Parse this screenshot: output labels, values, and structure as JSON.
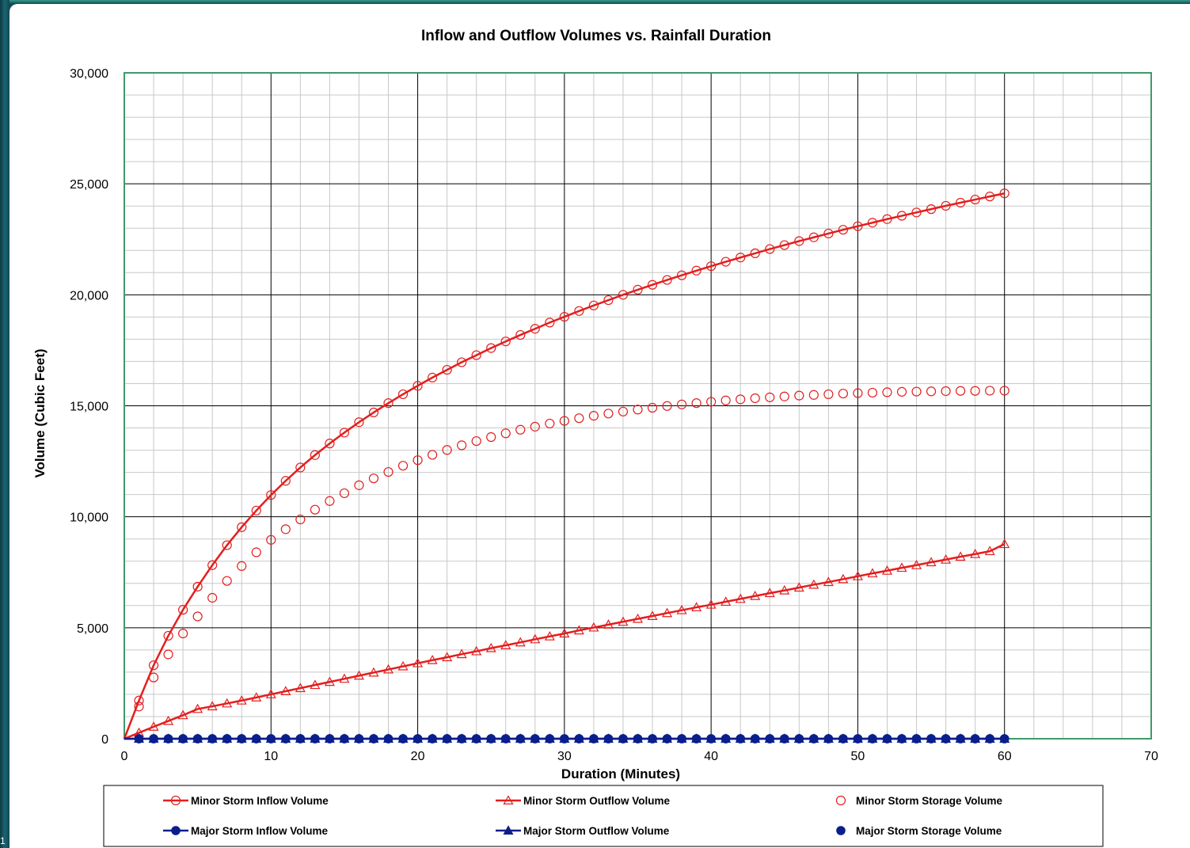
{
  "corner_mark": "1",
  "chart_data": {
    "type": "line",
    "title": "Inflow and Outflow Volumes vs. Rainfall Duration",
    "xlabel": "Duration (Minutes)",
    "ylabel": "Volume (Cubic Feet)",
    "xlim": [
      0,
      70
    ],
    "ylim": [
      0,
      30000
    ],
    "x_ticks": [
      0,
      10,
      20,
      30,
      40,
      50,
      60,
      70
    ],
    "x_tick_labels": [
      "0",
      "10",
      "20",
      "30",
      "40",
      "50",
      "60",
      "70"
    ],
    "y_ticks": [
      0,
      5000,
      10000,
      15000,
      20000,
      25000,
      30000
    ],
    "y_tick_labels": [
      "0",
      "5,000",
      "10,000",
      "15,000",
      "20,000",
      "25,000",
      "30,000"
    ],
    "grid": true,
    "legend_position": "bottom",
    "colors": {
      "minor": "#e41e1e",
      "major": "#0a1f8c",
      "plot_border": "#3f9a6a",
      "major_grid": "#000000",
      "minor_grid": "#c8c8c8"
    },
    "x": [
      0,
      1,
      2,
      3,
      4,
      5,
      6,
      7,
      8,
      9,
      10,
      11,
      12,
      13,
      14,
      15,
      16,
      17,
      18,
      19,
      20,
      21,
      22,
      23,
      24,
      25,
      26,
      27,
      28,
      29,
      30,
      31,
      32,
      33,
      34,
      35,
      36,
      37,
      38,
      39,
      40,
      41,
      42,
      43,
      44,
      45,
      46,
      47,
      48,
      49,
      50,
      51,
      52,
      53,
      54,
      55,
      56,
      57,
      58,
      59,
      60
    ],
    "series": [
      {
        "name": "Minor Storm Inflow Volume",
        "style": "line-open-circle",
        "values": [
          0,
          1720,
          3310,
          4640,
          5810,
          6850,
          7820,
          8720,
          9530,
          10280,
          10980,
          11620,
          12220,
          12780,
          13300,
          13790,
          14260,
          14700,
          15120,
          15520,
          15900,
          16270,
          16620,
          16960,
          17280,
          17600,
          17900,
          18190,
          18470,
          18750,
          19010,
          19270,
          19520,
          19760,
          20000,
          20230,
          20450,
          20670,
          20880,
          21090,
          21290,
          21490,
          21680,
          21870,
          22060,
          22240,
          22420,
          22590,
          22760,
          22930,
          23090,
          23250,
          23410,
          23560,
          23710,
          23860,
          24010,
          24150,
          24290,
          24430,
          24570
        ]
      },
      {
        "name": "Minor Storm Outflow Volume",
        "style": "line-open-triangle",
        "values": [
          0,
          270,
          540,
          800,
          1060,
          1340,
          1460,
          1590,
          1720,
          1860,
          2000,
          2140,
          2280,
          2420,
          2560,
          2700,
          2840,
          2980,
          3120,
          3260,
          3400,
          3540,
          3670,
          3810,
          3940,
          4080,
          4210,
          4340,
          4480,
          4610,
          4740,
          4880,
          5010,
          5140,
          5270,
          5400,
          5530,
          5660,
          5790,
          5920,
          6040,
          6170,
          6300,
          6430,
          6560,
          6680,
          6810,
          6940,
          7060,
          7190,
          7320,
          7450,
          7570,
          7700,
          7820,
          7950,
          8070,
          8200,
          8320,
          8450,
          8770
        ]
      },
      {
        "name": "Minor Storm Storage Volume",
        "style": "open-circle",
        "values": [
          0,
          1450,
          2760,
          3800,
          4740,
          5510,
          6350,
          7110,
          7780,
          8400,
          8960,
          9440,
          9880,
          10320,
          10710,
          11060,
          11420,
          11730,
          12020,
          12300,
          12550,
          12790,
          13010,
          13220,
          13410,
          13590,
          13760,
          13920,
          14060,
          14200,
          14320,
          14440,
          14550,
          14650,
          14740,
          14830,
          14910,
          14990,
          15060,
          15120,
          15180,
          15240,
          15290,
          15340,
          15380,
          15420,
          15460,
          15490,
          15520,
          15550,
          15570,
          15590,
          15610,
          15630,
          15640,
          15650,
          15660,
          15670,
          15670,
          15680,
          15680
        ]
      },
      {
        "name": "Major Storm Inflow Volume",
        "style": "line-filled-circle",
        "values": [
          0,
          0,
          0,
          0,
          0,
          0,
          0,
          0,
          0,
          0,
          0,
          0,
          0,
          0,
          0,
          0,
          0,
          0,
          0,
          0,
          0,
          0,
          0,
          0,
          0,
          0,
          0,
          0,
          0,
          0,
          0,
          0,
          0,
          0,
          0,
          0,
          0,
          0,
          0,
          0,
          0,
          0,
          0,
          0,
          0,
          0,
          0,
          0,
          0,
          0,
          0,
          0,
          0,
          0,
          0,
          0,
          0,
          0,
          0,
          0,
          0
        ]
      },
      {
        "name": "Major Storm Outflow Volume",
        "style": "line-filled-triangle",
        "values": [
          0,
          0,
          0,
          0,
          0,
          0,
          0,
          0,
          0,
          0,
          0,
          0,
          0,
          0,
          0,
          0,
          0,
          0,
          0,
          0,
          0,
          0,
          0,
          0,
          0,
          0,
          0,
          0,
          0,
          0,
          0,
          0,
          0,
          0,
          0,
          0,
          0,
          0,
          0,
          0,
          0,
          0,
          0,
          0,
          0,
          0,
          0,
          0,
          0,
          0,
          0,
          0,
          0,
          0,
          0,
          0,
          0,
          0,
          0,
          0,
          0
        ]
      },
      {
        "name": "Major Storm Storage Volume",
        "style": "filled-circle",
        "values": [
          0,
          0,
          0,
          0,
          0,
          0,
          0,
          0,
          0,
          0,
          0,
          0,
          0,
          0,
          0,
          0,
          0,
          0,
          0,
          0,
          0,
          0,
          0,
          0,
          0,
          0,
          0,
          0,
          0,
          0,
          0,
          0,
          0,
          0,
          0,
          0,
          0,
          0,
          0,
          0,
          0,
          0,
          0,
          0,
          0,
          0,
          0,
          0,
          0,
          0,
          0,
          0,
          0,
          0,
          0,
          0,
          0,
          0,
          0,
          0,
          0
        ]
      }
    ]
  }
}
